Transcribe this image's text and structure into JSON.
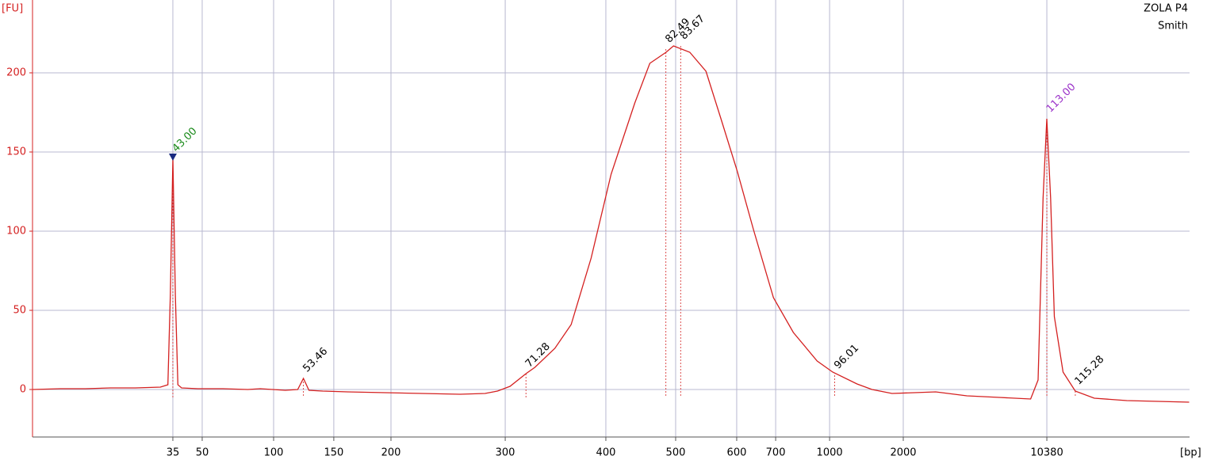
{
  "chart_data": {
    "type": "line",
    "y_label": "[FU]",
    "x_label": "[bp]",
    "annotations": [
      "ZOLA P4",
      "Smith"
    ],
    "color": "#d42020",
    "grid": true,
    "xlim": [
      31.76,
      124.43
    ],
    "ylim": [
      -30,
      246
    ],
    "yticks": [
      0,
      50,
      100,
      150,
      200
    ],
    "xticks": [
      {
        "value": 43.0,
        "label": "35"
      },
      {
        "value": 45.35,
        "label": "50"
      },
      {
        "value": 51.07,
        "label": "100"
      },
      {
        "value": 55.89,
        "label": "150"
      },
      {
        "value": 60.47,
        "label": "200"
      },
      {
        "value": 69.62,
        "label": "300"
      },
      {
        "value": 77.68,
        "label": "400"
      },
      {
        "value": 83.27,
        "label": "500"
      },
      {
        "value": 88.16,
        "label": "600"
      },
      {
        "value": 91.28,
        "label": "700"
      },
      {
        "value": 95.6,
        "label": "1000"
      },
      {
        "value": 101.5,
        "label": "2000"
      },
      {
        "value": 113.0,
        "label": "10380"
      }
    ],
    "x": [
      31.8,
      34,
      36,
      38,
      40,
      42,
      42.6,
      42.8,
      43.0,
      43.2,
      43.4,
      43.7,
      45,
      47,
      49,
      50,
      51,
      52,
      53,
      53.46,
      53.9,
      55,
      57,
      60,
      63,
      66,
      68,
      69,
      70,
      71.28,
      72,
      73.6,
      74.9,
      76.5,
      78.1,
      80,
      81.2,
      82.5,
      83.1,
      84.4,
      85.7,
      86.9,
      88.2,
      89.5,
      91.1,
      92.7,
      94.6,
      95.85,
      97.8,
      99,
      100.6,
      104.1,
      106.6,
      109.2,
      111.7,
      112.3,
      112.7,
      113.0,
      113.3,
      113.6,
      114.3,
      115.28,
      116.8,
      119.4,
      124.4
    ],
    "values": [
      0,
      0.5,
      0.5,
      1,
      1,
      1.5,
      3,
      60,
      146,
      60,
      3,
      1,
      0.5,
      0.5,
      0,
      0.5,
      0,
      -0.5,
      0,
      7,
      -0.5,
      -1,
      -1.5,
      -2,
      -2.5,
      -3,
      -2.5,
      -1,
      2,
      10,
      14,
      26,
      41,
      83,
      136,
      181,
      206,
      213,
      217,
      213,
      201,
      171,
      138,
      101,
      58,
      36,
      18,
      11,
      3.5,
      0,
      -2.5,
      -1.5,
      -4,
      -5,
      -6,
      6,
      121,
      171,
      121,
      46,
      11,
      -1,
      -5.5,
      -7,
      -8
    ],
    "peaks": [
      {
        "x": 43.0,
        "label": "43.00",
        "y": 146,
        "color": "#1a8a1a"
      },
      {
        "x": 53.46,
        "label": "53.46",
        "y": 7,
        "color": "#000000"
      },
      {
        "x": 71.28,
        "label": "71.28",
        "y": 10,
        "color": "#000000"
      },
      {
        "x": 82.49,
        "label": "82.49",
        "y": 215,
        "color": "#000000"
      },
      {
        "x": 83.67,
        "label": "83.67",
        "y": 217,
        "color": "#000000"
      },
      {
        "x": 96.01,
        "label": "96.01",
        "y": 9,
        "color": "#000000"
      },
      {
        "x": 113.0,
        "label": "113.00",
        "y": 171,
        "color": "#9a30c8"
      },
      {
        "x": 115.28,
        "label": "115.28",
        "y": -1,
        "color": "#000000"
      }
    ]
  }
}
